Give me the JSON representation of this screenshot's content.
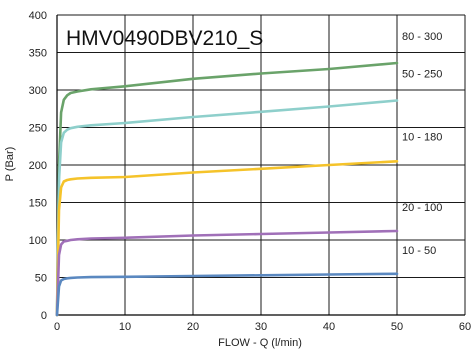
{
  "chart_data": {
    "type": "line",
    "title": "HMV0490DBV210_S",
    "xlabel": "FLOW - Q (l/min)",
    "ylabel": "P (Bar)",
    "xlim": [
      0,
      60
    ],
    "ylim": [
      0,
      400
    ],
    "xticks": [
      0,
      10,
      20,
      30,
      40,
      50,
      60
    ],
    "yticks": [
      0,
      50,
      100,
      150,
      200,
      250,
      300,
      350,
      400
    ],
    "grid": true,
    "series": [
      {
        "name": "80 - 300",
        "color": "#6aa36a",
        "x": [
          0,
          0.3,
          0.6,
          1,
          1.5,
          2,
          3,
          5,
          10,
          20,
          30,
          40,
          50
        ],
        "y": [
          0,
          200,
          270,
          287,
          293,
          296,
          298,
          301,
          305,
          315,
          322,
          328,
          336
        ]
      },
      {
        "name": "50 - 250",
        "color": "#8ecfcb",
        "x": [
          0,
          0.3,
          0.6,
          1,
          1.5,
          2,
          3,
          5,
          10,
          20,
          30,
          40,
          50
        ],
        "y": [
          0,
          180,
          230,
          243,
          247,
          249,
          251,
          253,
          256,
          264,
          271,
          278,
          286
        ]
      },
      {
        "name": "10 - 180",
        "color": "#f5c32a",
        "x": [
          0,
          0.3,
          0.6,
          1,
          1.5,
          2,
          3,
          5,
          10,
          20,
          30,
          40,
          50
        ],
        "y": [
          0,
          140,
          170,
          178,
          180,
          181,
          182,
          183,
          184,
          190,
          195,
          200,
          205
        ]
      },
      {
        "name": "20 - 100",
        "color": "#a070b8",
        "x": [
          0,
          0.3,
          0.6,
          1,
          1.5,
          2,
          3,
          5,
          10,
          20,
          30,
          40,
          50
        ],
        "y": [
          0,
          80,
          94,
          98,
          99,
          100,
          101,
          102,
          103,
          106,
          108,
          110,
          112
        ]
      },
      {
        "name": "10 - 50",
        "color": "#5a88c0",
        "x": [
          0,
          0.3,
          0.6,
          1,
          1.5,
          2,
          3,
          5,
          10,
          20,
          30,
          40,
          50
        ],
        "y": [
          0,
          38,
          46,
          48,
          49,
          49.5,
          50,
          50.5,
          51,
          52,
          53,
          54,
          55
        ]
      }
    ]
  }
}
